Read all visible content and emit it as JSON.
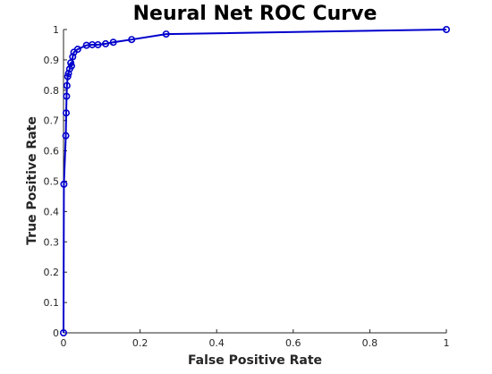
{
  "chart_data": {
    "type": "line",
    "title": "Neural Net ROC Curve",
    "xlabel": "False Positive Rate",
    "ylabel": "True Positive Rate",
    "xlim": [
      0,
      1
    ],
    "ylim": [
      0,
      1
    ],
    "x_ticks": [
      0,
      0.2,
      0.4,
      0.6,
      0.8,
      1
    ],
    "x_tick_labels": [
      "0",
      "0.2",
      "0.4",
      "0.6",
      "0.8",
      "1"
    ],
    "y_ticks": [
      0,
      0.1,
      0.2,
      0.3,
      0.4,
      0.5,
      0.6,
      0.7,
      0.8,
      0.9,
      1
    ],
    "y_tick_labels": [
      "0",
      "0.1",
      "0.2",
      "0.3",
      "0.4",
      "0.5",
      "0.6",
      "0.7",
      "0.8",
      "0.9",
      "1"
    ],
    "grid": false,
    "legend": "none",
    "marker": "circle",
    "series": [
      {
        "color": "#0000cc",
        "x": [
          0,
          0.001,
          0.006,
          0.007,
          0.008,
          0.009,
          0.011,
          0.013,
          0.016,
          0.019,
          0.021,
          0.024,
          0.027,
          0.037,
          0.06,
          0.075,
          0.09,
          0.11,
          0.13,
          0.178,
          0.268,
          1
        ],
        "y": [
          0,
          0.49,
          0.65,
          0.725,
          0.78,
          0.815,
          0.845,
          0.855,
          0.87,
          0.89,
          0.88,
          0.91,
          0.925,
          0.935,
          0.948,
          0.95,
          0.95,
          0.953,
          0.958,
          0.967,
          0.985,
          1
        ]
      }
    ]
  }
}
